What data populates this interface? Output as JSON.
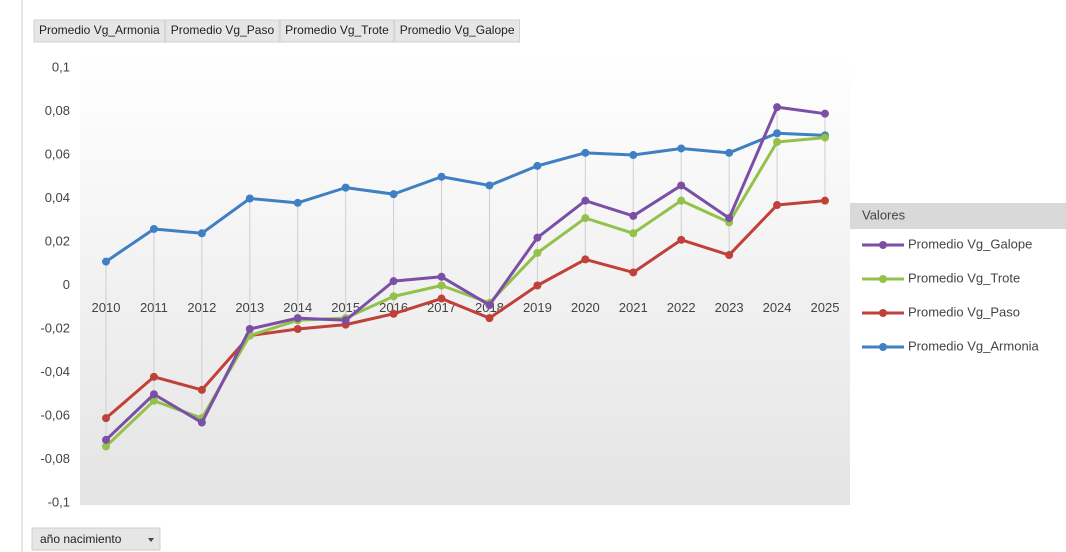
{
  "chart_data": {
    "type": "line",
    "field_buttons": [
      "Promedio Vg_Armonia",
      "Promedio Vg_Paso",
      "Promedio Vg_Trote",
      "Promedio Vg_Galope"
    ],
    "axis_button": "año nacimiento",
    "legend_title": "Valores",
    "legend": "right",
    "categories": [
      "2010",
      "2011",
      "2012",
      "2013",
      "2014",
      "2015",
      "2016",
      "2017",
      "2018",
      "2019",
      "2020",
      "2021",
      "2022",
      "2023",
      "2024",
      "2025"
    ],
    "series": [
      {
        "name": "Promedio Vg_Galope",
        "color": "#7b4fa6",
        "values": [
          -0.071,
          -0.05,
          -0.063,
          -0.02,
          -0.015,
          -0.016,
          0.002,
          0.004,
          -0.009,
          0.022,
          0.039,
          0.032,
          0.046,
          0.031,
          0.082,
          0.079
        ]
      },
      {
        "name": "Promedio Vg_Trote",
        "color": "#93c14a",
        "values": [
          -0.074,
          -0.053,
          -0.061,
          -0.023,
          -0.016,
          -0.015,
          -0.005,
          0.0,
          -0.008,
          0.015,
          0.031,
          0.024,
          0.039,
          0.029,
          0.066,
          0.068
        ]
      },
      {
        "name": "Promedio Vg_Paso",
        "color": "#c0403a",
        "values": [
          -0.061,
          -0.042,
          -0.048,
          -0.023,
          -0.02,
          -0.018,
          -0.013,
          -0.006,
          -0.015,
          0.0,
          0.012,
          0.006,
          0.021,
          0.014,
          0.037,
          0.039
        ]
      },
      {
        "name": "Promedio Vg_Armonia",
        "color": "#3f7fc4",
        "values": [
          0.011,
          0.026,
          0.024,
          0.04,
          0.038,
          0.045,
          0.042,
          0.05,
          0.046,
          0.055,
          0.061,
          0.06,
          0.063,
          0.061,
          0.07,
          0.069
        ]
      }
    ],
    "ylim": [
      -0.1,
      0.1
    ],
    "yticks": [
      {
        "value": 0.1,
        "label": "0,1"
      },
      {
        "value": 0.08,
        "label": "0,08"
      },
      {
        "value": 0.06,
        "label": "0,06"
      },
      {
        "value": 0.04,
        "label": "0,04"
      },
      {
        "value": 0.02,
        "label": "0,02"
      },
      0,
      {
        "value": -0.02,
        "label": "-0,02"
      },
      {
        "value": -0.04,
        "label": "-0,04"
      },
      {
        "value": -0.06,
        "label": "-0,06"
      },
      {
        "value": -0.08,
        "label": "-0,08"
      },
      {
        "value": -0.1,
        "label": "-0,1"
      }
    ]
  }
}
